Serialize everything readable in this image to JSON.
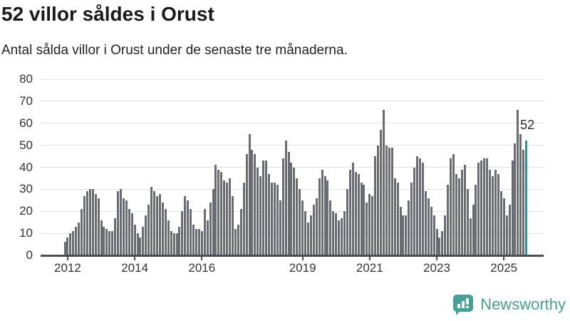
{
  "header": {
    "title": "52 villor såldes i Orust",
    "subtitle": "Antal sålda villor i Orust under de senaste tre månaderna."
  },
  "chart_data": {
    "type": "bar",
    "title": "52 villor såldes i Orust",
    "subtitle": "Antal sålda villor i Orust under de senaste tre månaderna.",
    "unit": "sålda villor (rullande tre månader)",
    "frequency": "monthly",
    "start_month": "2011-12",
    "end_month": "2025-09",
    "ylim": [
      0,
      80
    ],
    "y_ticks": [
      0,
      10,
      20,
      30,
      40,
      50,
      60,
      70,
      80
    ],
    "grid": "horizontal",
    "x_tick_labels": [
      "2012",
      "2014",
      "2016",
      "2019",
      "2021",
      "2023",
      "2025"
    ],
    "x_tick_indices": [
      1,
      25,
      49,
      85,
      109,
      133,
      157
    ],
    "values": [
      6,
      8,
      10,
      11,
      13,
      15,
      21,
      27,
      29,
      30,
      30,
      28,
      26,
      16,
      13,
      12,
      11,
      11,
      17,
      29,
      30,
      26,
      25,
      21,
      19,
      14,
      10,
      8,
      13,
      18,
      23,
      31,
      29,
      27,
      28,
      24,
      21,
      16,
      11,
      10,
      10,
      13,
      20,
      27,
      25,
      21,
      14,
      12,
      12,
      11,
      21,
      16,
      24,
      30,
      41,
      39,
      38,
      34,
      33,
      35,
      27,
      12,
      14,
      21,
      33,
      46,
      55,
      48,
      46,
      40,
      36,
      43,
      43,
      37,
      33,
      33,
      32,
      25,
      44,
      52,
      47,
      42,
      40,
      35,
      30,
      25,
      20,
      15,
      18,
      23,
      26,
      35,
      39,
      36,
      34,
      25,
      20,
      19,
      16,
      17,
      20,
      30,
      39,
      42,
      38,
      37,
      33,
      32,
      24,
      28,
      27,
      45,
      50,
      57,
      66,
      50,
      49,
      49,
      35,
      33,
      22,
      18,
      18,
      25,
      33,
      40,
      45,
      44,
      42,
      29,
      26,
      22,
      18,
      12,
      8,
      11,
      18,
      32,
      44,
      46,
      37,
      35,
      39,
      41,
      30,
      17,
      23,
      32,
      42,
      43,
      44,
      44,
      39,
      36,
      39,
      37,
      29,
      26,
      18,
      23,
      43,
      51,
      66,
      55,
      48,
      52
    ],
    "highlight_index": 165,
    "highlight_value": 52,
    "annotation": {
      "text": "52"
    },
    "bar_color": "#6b6b74",
    "highlight_color": "#12a29c",
    "gridline_color": "#e2e2e2",
    "axis_color": "#4d4d55",
    "label_color": "#333333"
  },
  "footer": {
    "brand": "Newsworthy",
    "brand_color": "#47a095",
    "logo_icon": "bar-chart-speech-bubble"
  }
}
